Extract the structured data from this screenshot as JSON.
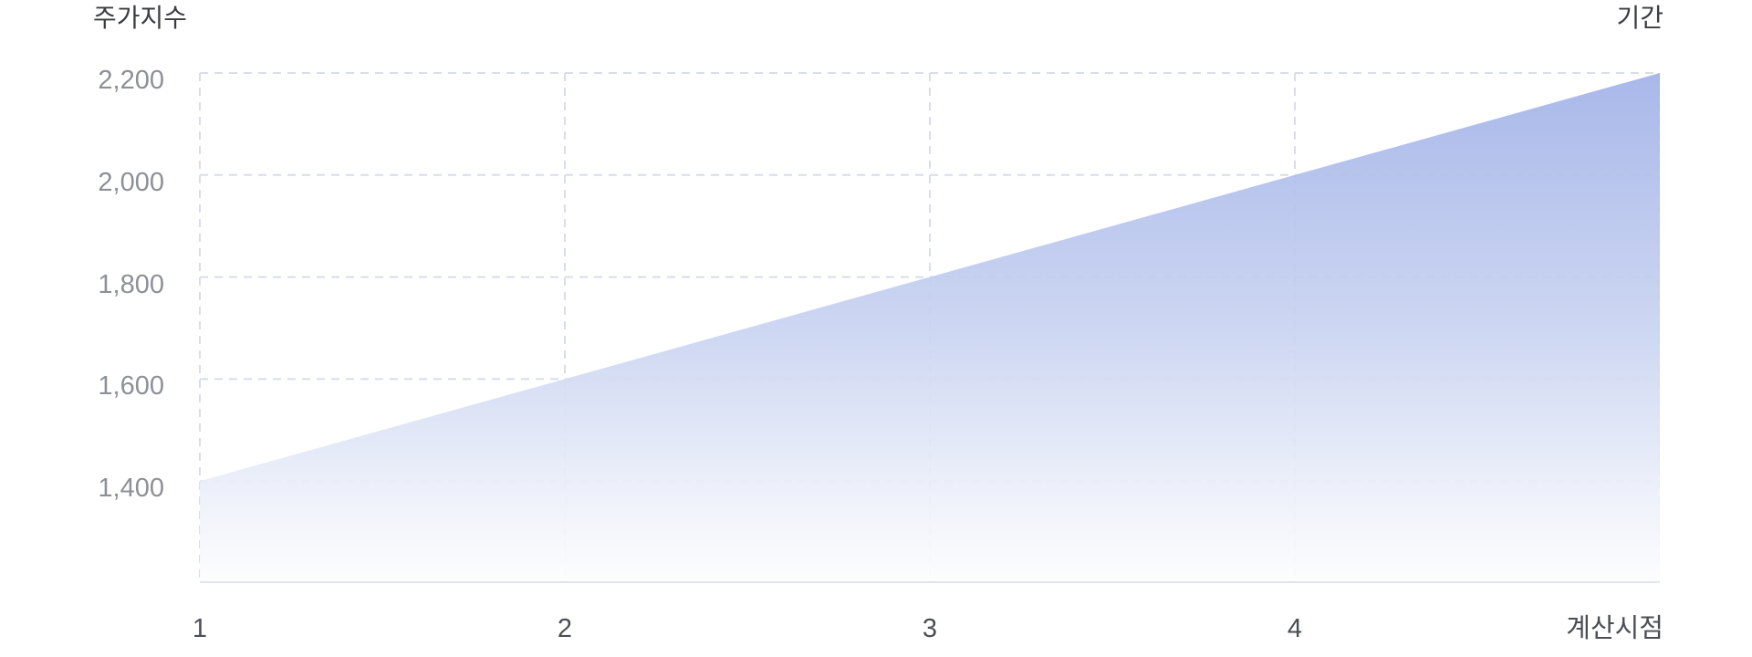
{
  "page": {
    "background": "#ffffff"
  },
  "chart_data": {
    "type": "area",
    "y_axis_title": "주가지수",
    "x_axis_title": "기간",
    "x_tick_labels": [
      "1",
      "2",
      "3",
      "4",
      "계산시점"
    ],
    "y_tick_labels": [
      "2,200",
      "2,000",
      "1,800",
      "1,600",
      "1,400"
    ],
    "y_tick_values": [
      2200,
      2000,
      1800,
      1600,
      1400
    ],
    "series": [
      {
        "name": "주가지수",
        "x": [
          "1",
          "2",
          "3",
          "4",
          "계산시점"
        ],
        "values": [
          1400,
          1600,
          1800,
          2000,
          2200
        ]
      }
    ],
    "ylim": [
      1200,
      2200
    ],
    "grid": "dashed",
    "legend_position": "none",
    "colors": {
      "area_gradient_top": "#a1b2e7",
      "area_gradient_mid": "#c9d3f1",
      "area_gradient_low": "#eff2fa",
      "area_gradient_bottom": "#fdfdff",
      "gridline": "#d9dde9",
      "axis_line": "#e1e4ee",
      "y_tick_text": "#8d9097",
      "x_tick_text": "#4b4e54",
      "title_text": "#3b3d42"
    }
  }
}
